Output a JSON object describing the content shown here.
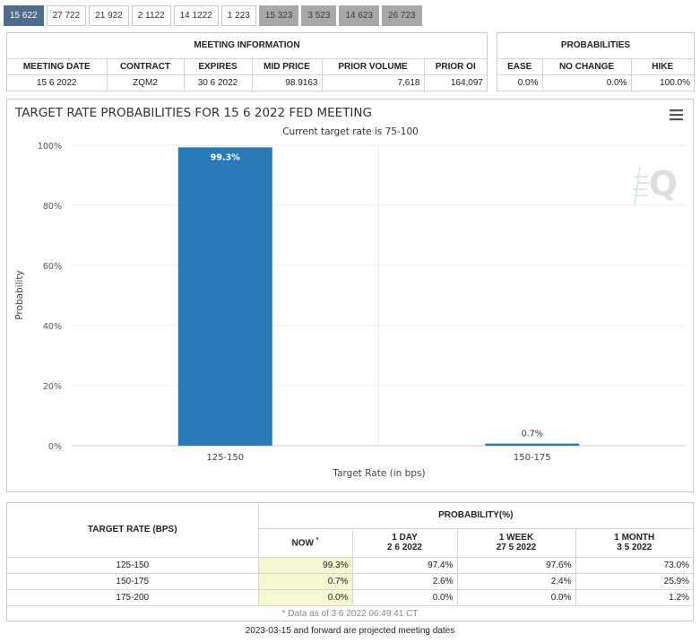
{
  "tabs": [
    {
      "label": "15 622",
      "state": "active"
    },
    {
      "label": "27 722",
      "state": "normal"
    },
    {
      "label": "21 922",
      "state": "normal"
    },
    {
      "label": "2 1122",
      "state": "normal"
    },
    {
      "label": "14 1222",
      "state": "normal"
    },
    {
      "label": "1 223",
      "state": "normal"
    },
    {
      "label": "15 323",
      "state": "projected"
    },
    {
      "label": "3 523",
      "state": "projected"
    },
    {
      "label": "14 623",
      "state": "projected"
    },
    {
      "label": "26 723",
      "state": "projected"
    }
  ],
  "meeting_info": {
    "title": "MEETING INFORMATION",
    "headers": {
      "date": "MEETING DATE",
      "contract": "CONTRACT",
      "expires": "EXPIRES",
      "mid": "MID PRICE",
      "volume": "PRIOR VOLUME",
      "oi": "PRIOR OI"
    },
    "values": {
      "date": "15 6 2022",
      "contract": "ZQM2",
      "expires": "30 6 2022",
      "mid": "98.9163",
      "volume": "7,618",
      "oi": "164,097"
    }
  },
  "probabilities": {
    "title": "PROBABILITIES",
    "headers": {
      "ease": "EASE",
      "no_change": "NO CHANGE",
      "hike": "HIKE"
    },
    "values": {
      "ease": "0.0%",
      "no_change": "0.0%",
      "hike": "100.0%"
    }
  },
  "chart": {
    "menu_icon": "hamburger-menu-icon",
    "watermark": "Q",
    "bar_color": "#2a7ab8"
  },
  "chart_data": {
    "type": "bar",
    "title": "TARGET RATE PROBABILITIES FOR 15 6 2022 FED MEETING",
    "subtitle": "Current target rate is 75-100",
    "xlabel": "Target Rate (in bps)",
    "ylabel": "Probability",
    "categories": [
      "125-150",
      "150-175"
    ],
    "values": [
      99.3,
      0.7
    ],
    "data_labels": [
      "99.3%",
      "0.7%"
    ],
    "ylim": [
      0,
      100
    ],
    "yticks": [
      "0%",
      "20%",
      "40%",
      "60%",
      "80%",
      "100%"
    ],
    "grid": true
  },
  "prob_table": {
    "rate_header": "TARGET RATE (BPS)",
    "prob_header": "PROBABILITY(%)",
    "col_now": "NOW",
    "col_now_mark": "*",
    "col_1d": "1 DAY",
    "col_1d_date": "2 6 2022",
    "col_1w": "1 WEEK",
    "col_1w_date": "27 5 2022",
    "col_1m": "1 MONTH",
    "col_1m_date": "3 5 2022",
    "rows": [
      {
        "rate": "125-150",
        "now": "99.3%",
        "d1": "97.4%",
        "w1": "97.6%",
        "m1": "73.0%"
      },
      {
        "rate": "150-175",
        "now": "0.7%",
        "d1": "2.6%",
        "w1": "2.4%",
        "m1": "25.9%"
      },
      {
        "rate": "175-200",
        "now": "0.0%",
        "d1": "0.0%",
        "w1": "0.0%",
        "m1": "1.2%"
      }
    ],
    "footnote": "* Data as of 3 6 2022 06:49:41 CT"
  },
  "bottom_note": "2023-03-15 and forward are projected meeting dates"
}
